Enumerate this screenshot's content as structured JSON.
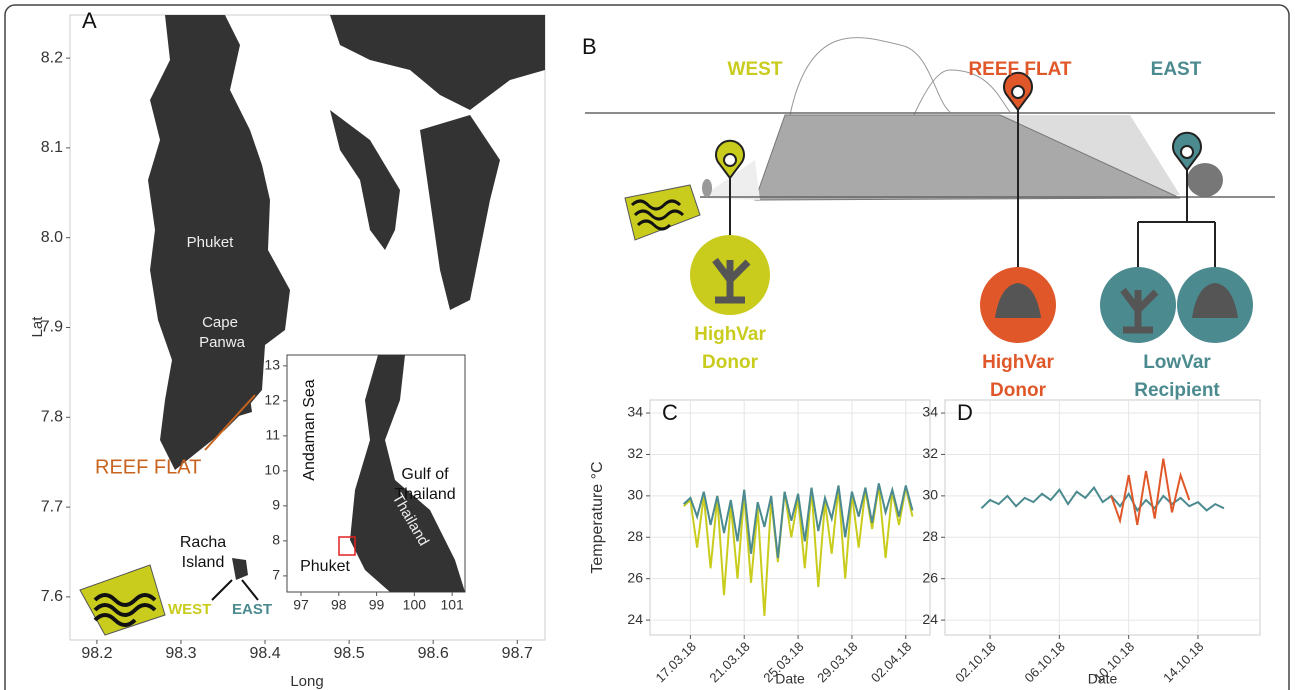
{
  "map": {
    "label": "A",
    "ylabel": "Lat",
    "xlabel": "Long",
    "xlim": [
      98.168,
      98.733
    ],
    "ylim": [
      7.552,
      8.248
    ],
    "xticks": [
      98.2,
      98.3,
      98.4,
      98.5,
      98.6,
      98.7
    ],
    "yticks": [
      7.6,
      7.7,
      7.8,
      7.9,
      {
        "value": 8,
        "label": "8.0"
      },
      8.1,
      8.2
    ],
    "places": [
      "Phuket",
      "Cape",
      "Panwa",
      "REEF FLAT",
      "Racha",
      "Island",
      "WEST",
      "EAST"
    ],
    "inset": {
      "xlim": [
        96.63,
        101.34
      ],
      "ylim": [
        6.54,
        13.31
      ],
      "xticks": [
        97,
        98,
        99,
        100,
        101
      ],
      "yticks": [
        7,
        8,
        9,
        10,
        11,
        12,
        13
      ],
      "places": [
        "Andaman Sea",
        "Gulf of",
        "Thailand",
        "Thailand",
        "Phuket"
      ]
    }
  },
  "diagram": {
    "label": "B",
    "sites": [
      {
        "name": "WEST",
        "labels": [
          "HighVar",
          "Donor"
        ]
      },
      {
        "name": "REEF FLAT",
        "labels": [
          "HighVar",
          "Donor"
        ]
      },
      {
        "name": "EAST",
        "labels": [
          "LowVar",
          "Recipient"
        ]
      }
    ]
  },
  "chart_data": [
    {
      "type": "line",
      "label": "C",
      "ylabel": "Temperature °C",
      "xlabel": "Date",
      "x": [
        -0.5,
        0,
        0.5,
        1,
        1.5,
        2,
        2.5,
        3,
        3.5,
        4,
        4.5,
        5,
        5.5,
        6,
        6.5,
        7,
        7.5,
        8,
        8.5,
        9,
        9.5,
        10,
        10.5,
        11,
        11.5,
        12,
        12.5,
        13,
        13.5,
        14,
        14.5,
        15,
        15.5,
        16,
        16.5
      ],
      "xlim": [
        -3,
        17.8
      ],
      "xticks": [
        {
          "value": 0,
          "label": "17.03.18"
        },
        {
          "value": 4,
          "label": "21.03.18"
        },
        {
          "value": 8,
          "label": "25.03.18"
        },
        {
          "value": 12,
          "label": "29.03.18"
        },
        {
          "value": 16,
          "label": "02.04.18"
        }
      ],
      "ylim": [
        23.28,
        34.63
      ],
      "yticks": [
        24,
        26,
        28,
        30,
        32,
        34
      ],
      "grid": true,
      "series": [
        {
          "color": "#c9cc1c",
          "values": [
            29.5,
            29.8,
            27.5,
            30.0,
            26.5,
            29.9,
            25.2,
            29.6,
            26.0,
            30.1,
            25.8,
            29.4,
            24.2,
            29.8,
            26.8,
            30.2,
            28.0,
            29.9,
            26.5,
            30.3,
            25.6,
            29.7,
            27.2,
            30.4,
            26.0,
            30.1,
            27.5,
            30.3,
            28.4,
            30.5,
            27.0,
            30.2,
            28.6,
            30.4,
            29.0
          ]
        },
        {
          "color": "#4b8a8f",
          "values": [
            29.6,
            29.9,
            29.0,
            30.2,
            28.6,
            30.0,
            28.2,
            29.8,
            27.8,
            30.3,
            27.2,
            29.7,
            28.5,
            30.0,
            27.0,
            30.2,
            28.8,
            30.1,
            27.8,
            30.4,
            28.3,
            29.9,
            28.9,
            30.5,
            28.0,
            30.2,
            29.0,
            30.4,
            28.7,
            30.6,
            29.2,
            30.3,
            29.0,
            30.5,
            29.3
          ]
        }
      ]
    },
    {
      "type": "line",
      "label": "D",
      "xlabel": "Date",
      "x": [
        -0.5,
        0,
        0.5,
        1,
        1.5,
        2,
        2.5,
        3,
        3.5,
        4,
        4.5,
        5,
        5.5,
        6,
        6.5,
        7,
        7.5,
        8,
        8.5,
        9,
        9.5,
        10,
        10.5,
        11,
        11.5,
        12,
        12.5,
        13,
        13.5
      ],
      "xlim": [
        -2.6,
        15.58
      ],
      "xticks": [
        {
          "value": 0,
          "label": "02.10.18"
        },
        {
          "value": 4,
          "label": "06.10.18"
        },
        {
          "value": 8,
          "label": "10.10.18"
        },
        {
          "value": 12,
          "label": "14.10.18"
        }
      ],
      "ylim": [
        23.28,
        34.63
      ],
      "yticks": [
        24,
        26,
        28,
        30,
        32,
        34
      ],
      "grid": true,
      "series": [
        {
          "color": "#4b8a8f",
          "values": [
            29.4,
            29.8,
            29.6,
            30.0,
            29.5,
            29.9,
            29.7,
            30.1,
            29.8,
            30.3,
            29.6,
            30.2,
            29.9,
            30.4,
            29.7,
            30.0,
            29.5,
            30.1,
            29.3,
            29.8,
            29.4,
            30.0,
            29.6,
            29.9,
            29.5,
            29.7,
            29.3,
            29.6,
            29.4
          ]
        },
        {
          "color": "#e0582a",
          "values": [
            null,
            null,
            null,
            null,
            null,
            null,
            null,
            null,
            null,
            null,
            null,
            null,
            null,
            null,
            null,
            30.0,
            28.8,
            31.0,
            28.6,
            31.2,
            28.9,
            31.8,
            29.2,
            31.0,
            29.8,
            null,
            null,
            null,
            null
          ]
        }
      ]
    }
  ]
}
